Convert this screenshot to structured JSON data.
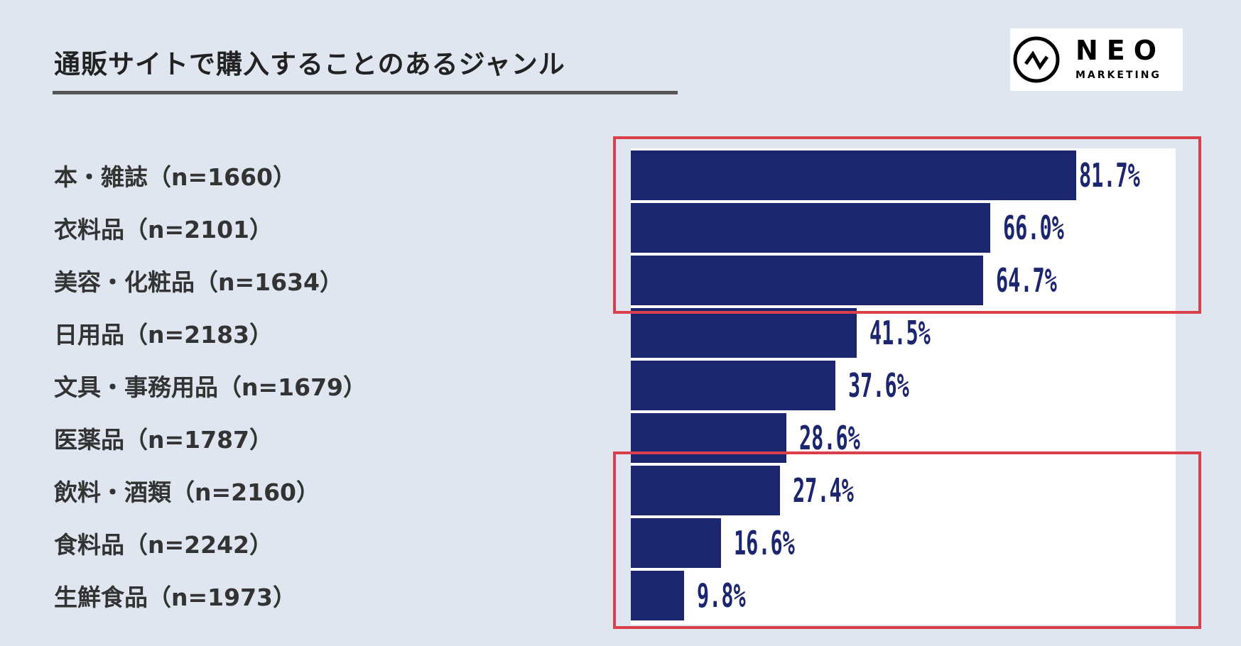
{
  "header": {
    "title": "通販サイトで購入することのあるジャンル"
  },
  "logo": {
    "text_main": "NEO",
    "text_sub": "MARKETING"
  },
  "chart_data": {
    "type": "bar",
    "orientation": "horizontal",
    "title": "通販サイトで購入することのあるジャンル",
    "categories": [
      "本・雑誌（n=1660）",
      "衣料品（n=2101）",
      "美容・化粧品（n=1634）",
      "日用品（n=2183）",
      "文具・事務用品（n=1679）",
      "医薬品（n=1787）",
      "飲料・酒類（n=2160）",
      "食料品（n=2242）",
      "生鮮食品（n=1973）"
    ],
    "values": [
      81.7,
      66.0,
      64.7,
      41.5,
      37.6,
      28.6,
      27.4,
      16.6,
      9.8
    ],
    "value_labels": [
      "81.7%",
      "66.0%",
      "64.7%",
      "41.5%",
      "37.6%",
      "28.6%",
      "27.4%",
      "16.6%",
      "9.8%"
    ],
    "xlim": [
      0,
      100
    ],
    "grid": false,
    "bar_color": "#1b266e",
    "highlight_color": "#d9404b",
    "highlight_groups": [
      [
        0,
        2
      ],
      [
        6,
        8
      ]
    ]
  }
}
